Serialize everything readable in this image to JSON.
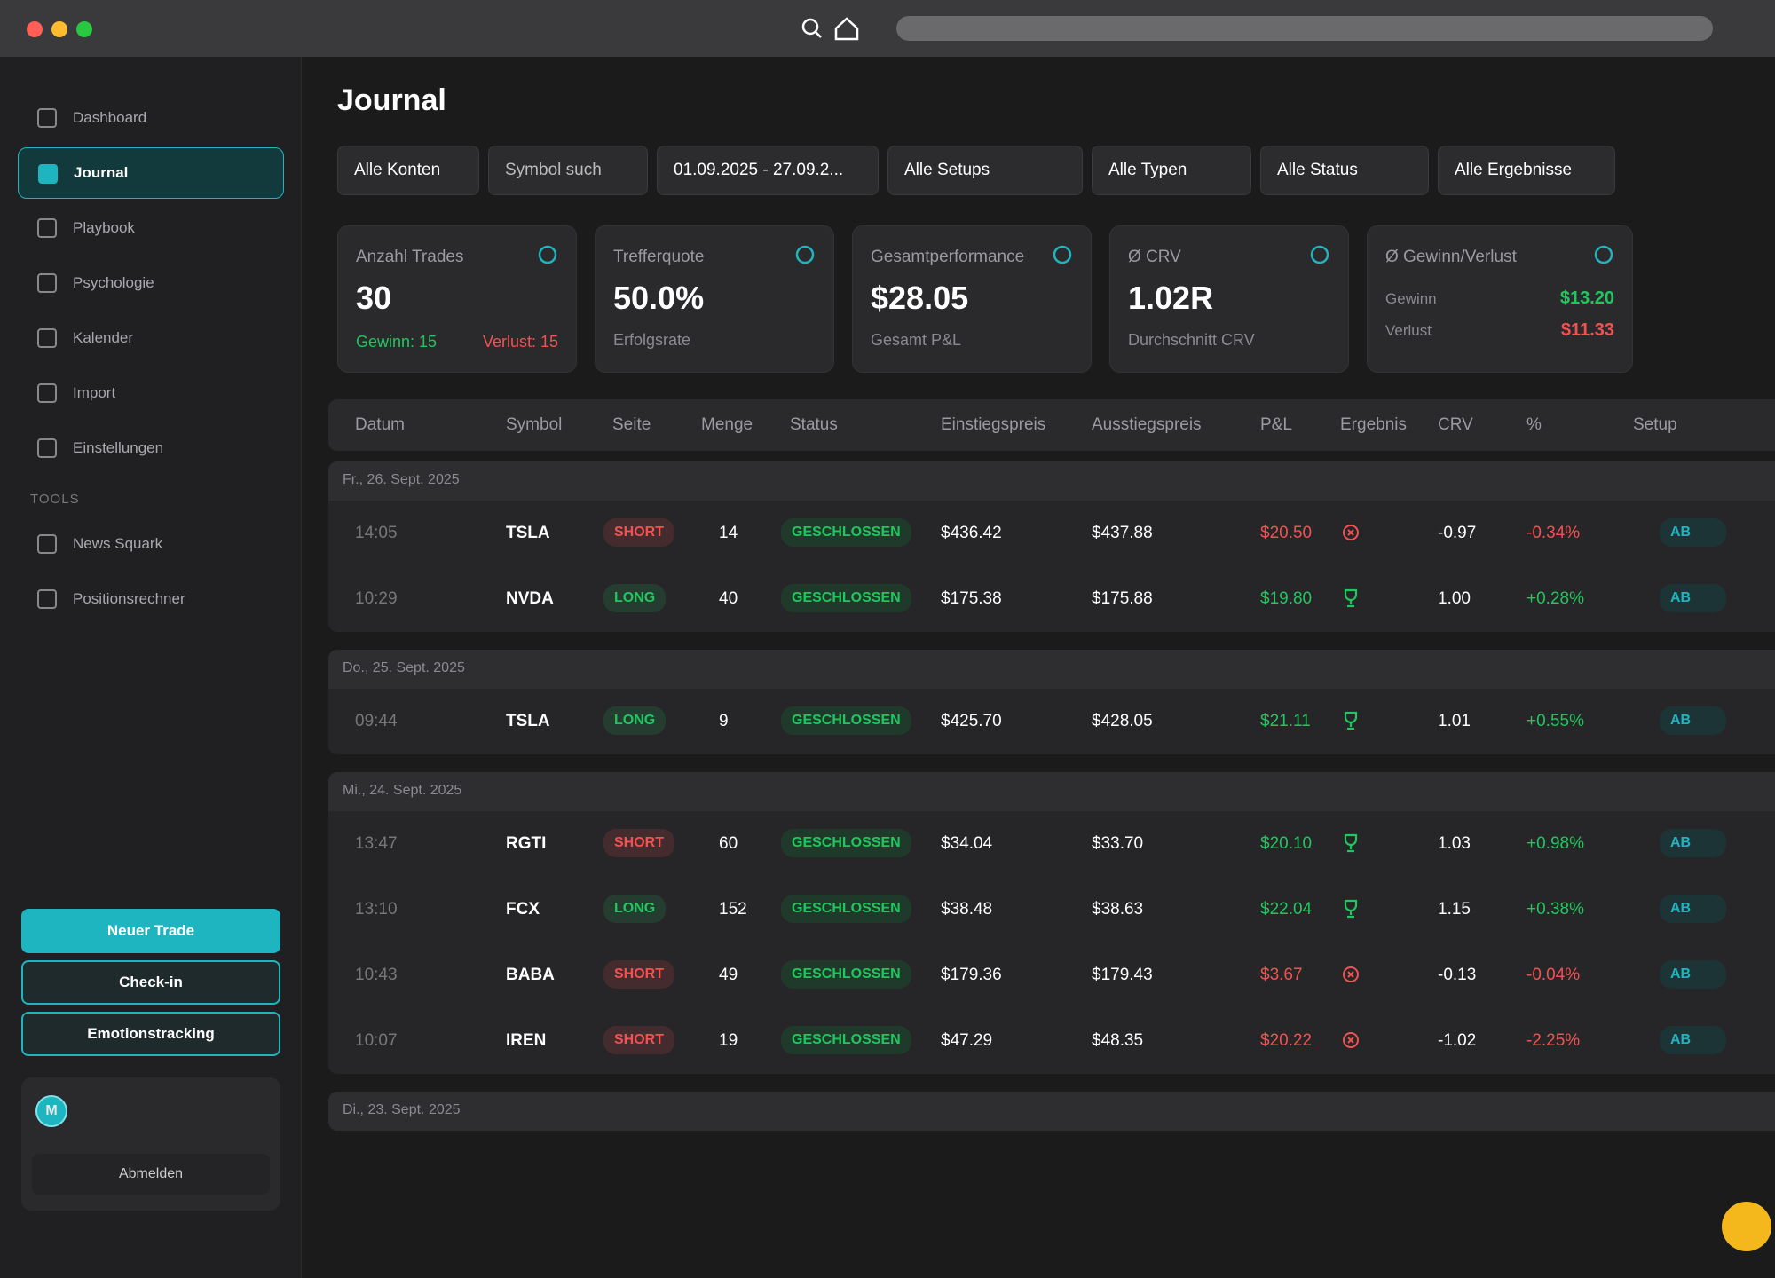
{
  "sidebar": {
    "nav": [
      "Dashboard",
      "Journal",
      "Playbook",
      "Psychologie",
      "Kalender",
      "Import",
      "Einstellungen"
    ],
    "active": 1,
    "tools_heading": "TOOLS",
    "tools": [
      "News Squark",
      "Positionsrechner"
    ],
    "buttons": [
      "Neuer Trade",
      "Check-in",
      "Emotionstracking"
    ],
    "avatar": "M",
    "logout": "Abmelden"
  },
  "header": {
    "title": "Journal"
  },
  "filters": [
    "Alle Konten",
    "Symbol such",
    "01.09.2025 - 27.09.2...",
    "Alle Setups",
    "Alle Typen",
    "Alle Status",
    "Alle Ergebnisse"
  ],
  "stats": [
    {
      "label": "Anzahl Trades",
      "value": "30",
      "win": "Gewinn: 15",
      "loss": "Verlust: 15",
      "icon_color": "#1fb5c0"
    },
    {
      "label": "Trefferquote",
      "value": "50.0%",
      "sub": "Erfolgsrate",
      "icon_color": "#1fb5c0"
    },
    {
      "label": "Gesamtperformance",
      "value": "$28.05",
      "sub": "Gesamt P&L",
      "icon_color": "#1fb5c0"
    },
    {
      "label": "Ø CRV",
      "value": "1.02R",
      "sub": "Durchschnitt CRV",
      "icon_color": "#1fb5c0"
    },
    {
      "label": "Ø Gewinn/Verlust",
      "rows": [
        [
          "Gewinn",
          "$13.20"
        ],
        [
          "Verlust",
          "$11.33"
        ]
      ],
      "icon_color": "#1fb5c0"
    }
  ],
  "table": {
    "columns": [
      "Datum",
      "Symbol",
      "Seite",
      "Menge",
      "Status",
      "Einstiegspreis",
      "Ausstiegspreis",
      "P&L",
      "Ergebnis",
      "CRV",
      "%",
      "Setup"
    ],
    "groups": [
      {
        "date": "Fr., 26. Sept. 2025",
        "rows": [
          {
            "time": "14:05",
            "symbol": "TSLA",
            "side": "SHORT",
            "side_color": "#f05252",
            "qty": "14",
            "status": "GESCHLOSSEN",
            "entry": "$436.42",
            "exit": "$437.88",
            "pnl": "$20.50",
            "result": "loss",
            "crv": "-0.97",
            "pct": "-0.34%",
            "setup": "AB"
          },
          {
            "time": "10:29",
            "symbol": "NVDA",
            "side": "LONG",
            "side_color": "#22c55e",
            "qty": "40",
            "status": "GESCHLOSSEN",
            "entry": "$175.38",
            "exit": "$175.88",
            "pnl": "$19.80",
            "result": "win",
            "crv": "1.00",
            "pct": "+0.28%",
            "setup": "AB"
          }
        ]
      },
      {
        "date": "Do., 25. Sept. 2025",
        "rows": [
          {
            "time": "09:44",
            "symbol": "TSLA",
            "side": "LONG",
            "side_color": "#22c55e",
            "qty": "9",
            "status": "GESCHLOSSEN",
            "entry": "$425.70",
            "exit": "$428.05",
            "pnl": "$21.11",
            "result": "win",
            "crv": "1.01",
            "pct": "+0.55%",
            "setup": "AB"
          }
        ]
      },
      {
        "date": "Mi., 24. Sept. 2025",
        "rows": [
          {
            "time": "13:47",
            "symbol": "RGTI",
            "side": "SHORT",
            "side_color": "#f05252",
            "qty": "60",
            "status": "GESCHLOSSEN",
            "entry": "$34.04",
            "exit": "$33.70",
            "pnl": "$20.10",
            "result": "win",
            "crv": "1.03",
            "pct": "+0.98%",
            "setup": "AB"
          },
          {
            "time": "13:10",
            "symbol": "FCX",
            "side": "LONG",
            "side_color": "#22c55e",
            "qty": "152",
            "status": "GESCHLOSSEN",
            "entry": "$38.48",
            "exit": "$38.63",
            "pnl": "$22.04",
            "result": "win",
            "crv": "1.15",
            "pct": "+0.38%",
            "setup": "AB"
          },
          {
            "time": "10:43",
            "symbol": "BABA",
            "side": "SHORT",
            "side_color": "#f05252",
            "qty": "49",
            "status": "GESCHLOSSEN",
            "entry": "$179.36",
            "exit": "$179.43",
            "pnl": "$3.67",
            "result": "loss",
            "crv": "-0.13",
            "pct": "-0.04%",
            "setup": "AB"
          },
          {
            "time": "10:07",
            "symbol": "IREN",
            "side": "SHORT",
            "side_color": "#f05252",
            "qty": "19",
            "status": "GESCHLOSSEN",
            "entry": "$47.29",
            "exit": "$48.35",
            "pnl": "$20.22",
            "result": "loss",
            "crv": "-1.02",
            "pct": "-2.25%",
            "setup": "AB"
          }
        ]
      },
      {
        "date": "Di., 23. Sept. 2025",
        "rows": []
      }
    ]
  }
}
